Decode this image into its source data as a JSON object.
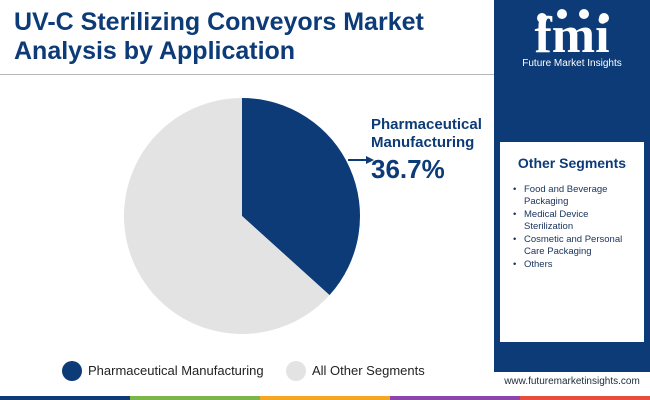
{
  "title": "UV-C Sterilizing Conveyors Market Analysis by Application",
  "brand": {
    "logo_text": "fmi",
    "name": "Future Market Insights",
    "website": "www.futuremarketinsights.com",
    "color": "#0d3b78"
  },
  "other_segments": {
    "header": "Other Segments",
    "items": [
      "Food and Beverage Packaging",
      "Medical Device Sterilization",
      "Cosmetic and Personal Care Packaging",
      "Others"
    ]
  },
  "callout": {
    "label": "Pharmaceutical Manufacturing",
    "value": "36.7%"
  },
  "chart_data": {
    "type": "pie",
    "title": "UV-C Sterilizing Conveyors Market Analysis by Application",
    "categories": [
      "Pharmaceutical Manufacturing",
      "All Other Segments"
    ],
    "values": [
      36.7,
      63.3
    ],
    "colors": [
      "#0d3b78",
      "#e3e3e3"
    ],
    "start_angle": "12 o'clock, clockwise",
    "legend_position": "bottom"
  },
  "footer_bar_colors": [
    "#0d3b78",
    "#7ab648",
    "#f5a623",
    "#8e44ad",
    "#e74c3c"
  ]
}
